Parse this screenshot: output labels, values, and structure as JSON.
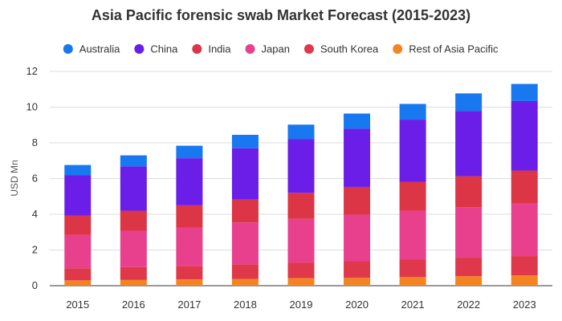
{
  "chart_data": {
    "type": "bar",
    "stacked": true,
    "title": "Asia Pacific forensic swab Market Forecast (2015-2023)",
    "xlabel": "",
    "ylabel": "USD Mn",
    "ylim": [
      0,
      12
    ],
    "yticks": [
      0,
      2,
      4,
      6,
      8,
      10,
      12
    ],
    "grid": true,
    "legend_position": "top",
    "categories": [
      "2015",
      "2016",
      "2017",
      "2018",
      "2019",
      "2020",
      "2021",
      "2022",
      "2023"
    ],
    "series": [
      {
        "name": "Rest of Asia Pacific",
        "color": "#f28522",
        "values": [
          0.3,
          0.32,
          0.35,
          0.38,
          0.42,
          0.44,
          0.48,
          0.53,
          0.58
        ]
      },
      {
        "name": "South Korea",
        "color": "#e0384b",
        "values": [
          0.68,
          0.72,
          0.76,
          0.82,
          0.88,
          0.93,
          0.98,
          1.04,
          1.08
        ]
      },
      {
        "name": "Japan",
        "color": "#e8408c",
        "values": [
          1.87,
          2.04,
          2.15,
          2.34,
          2.44,
          2.61,
          2.74,
          2.82,
          2.95
        ]
      },
      {
        "name": "India",
        "color": "#dc3545",
        "values": [
          1.08,
          1.12,
          1.24,
          1.28,
          1.46,
          1.55,
          1.62,
          1.74,
          1.84
        ]
      },
      {
        "name": "China",
        "color": "#6a1ee8",
        "values": [
          2.25,
          2.48,
          2.64,
          2.88,
          3.02,
          3.26,
          3.48,
          3.66,
          3.89
        ]
      },
      {
        "name": "Australia",
        "color": "#1878f0",
        "values": [
          0.58,
          0.62,
          0.7,
          0.75,
          0.8,
          0.85,
          0.88,
          0.98,
          0.96
        ]
      }
    ]
  },
  "legend_order": [
    "Australia",
    "China",
    "India",
    "Japan",
    "South Korea",
    "Rest of Asia Pacific"
  ]
}
